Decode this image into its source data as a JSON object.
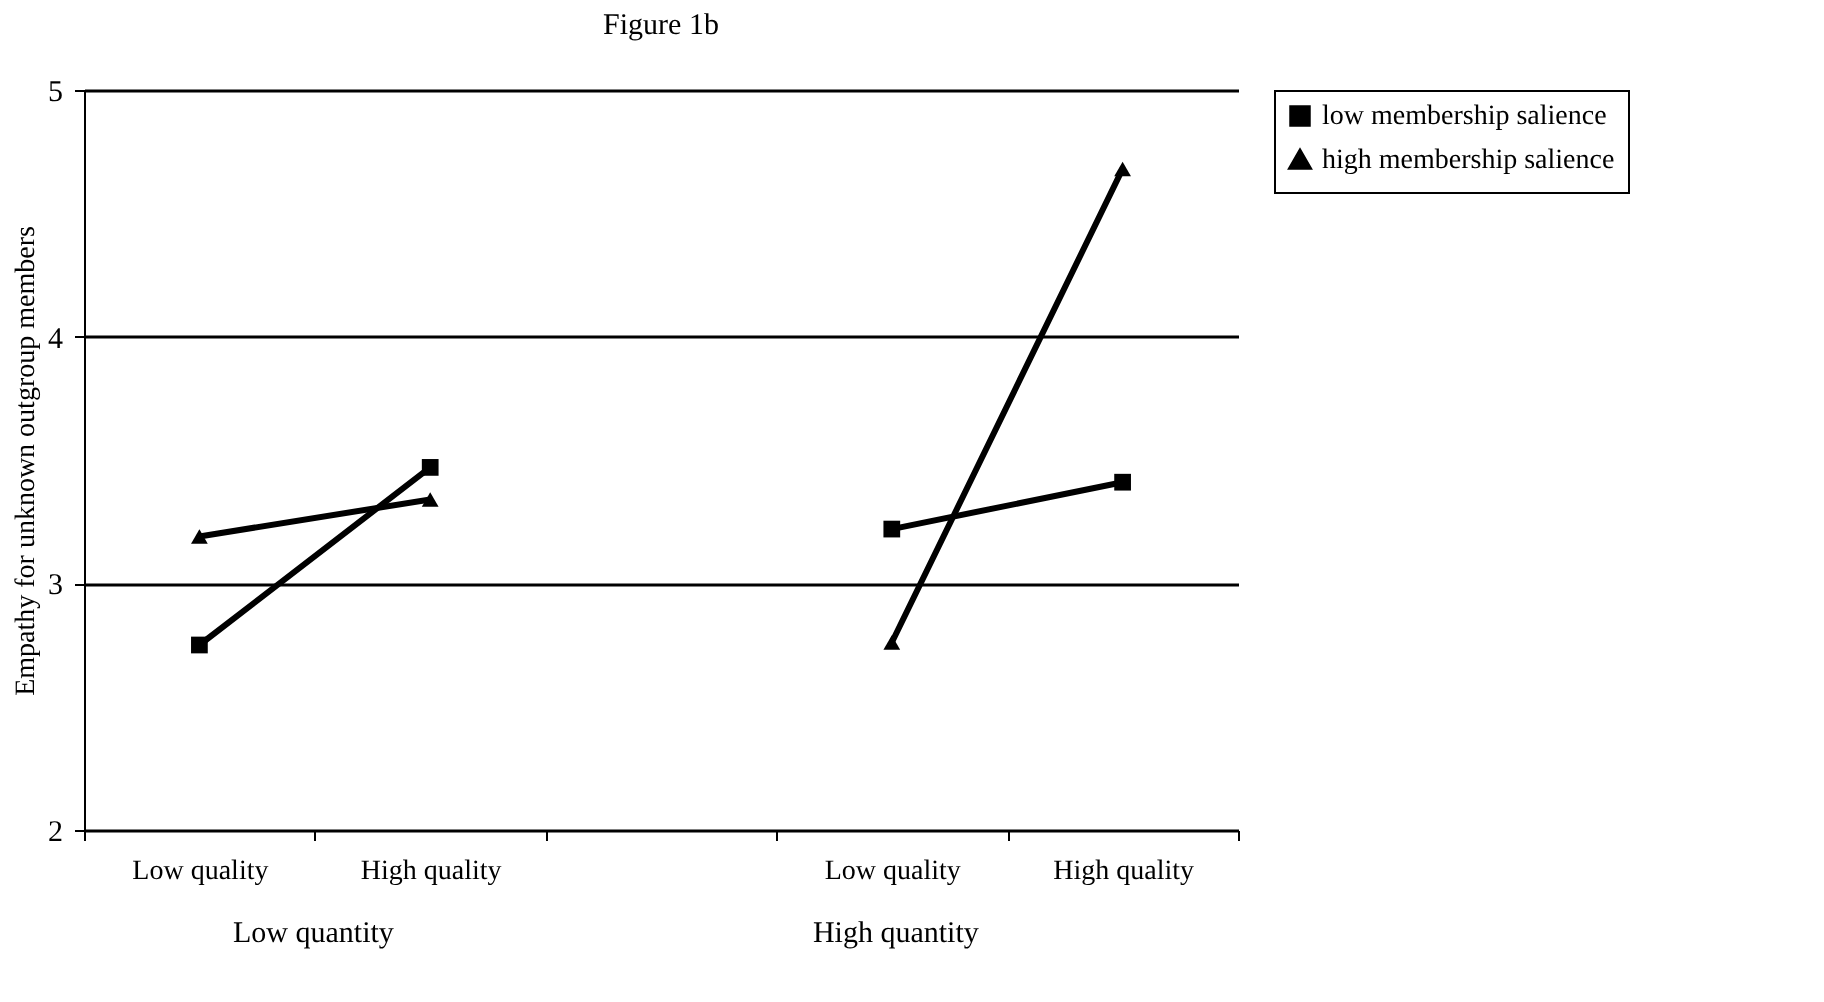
{
  "chart_data": {
    "type": "line",
    "title": "Figure 1b",
    "ylabel": "Empathy for unknown outgroup members",
    "categories": [
      "Low quality",
      "High quality",
      null,
      "Low quality",
      "High quality"
    ],
    "series": [
      {
        "name": "low membership salience",
        "color": "#000000",
        "marker": "square",
        "values": [
          2.75,
          3.47,
          null,
          3.22,
          3.41
        ]
      },
      {
        "name": "high membership salience",
        "color": "#000000",
        "marker": "triangle",
        "values": [
          3.19,
          3.34,
          null,
          2.76,
          4.68
        ]
      }
    ],
    "annotations": [
      "Low quantity",
      "High quantity"
    ],
    "ylim": [
      2,
      5
    ],
    "yticks": [
      2,
      3,
      4,
      5
    ],
    "grid": "y",
    "legend": "right",
    "line_style": "solid"
  }
}
